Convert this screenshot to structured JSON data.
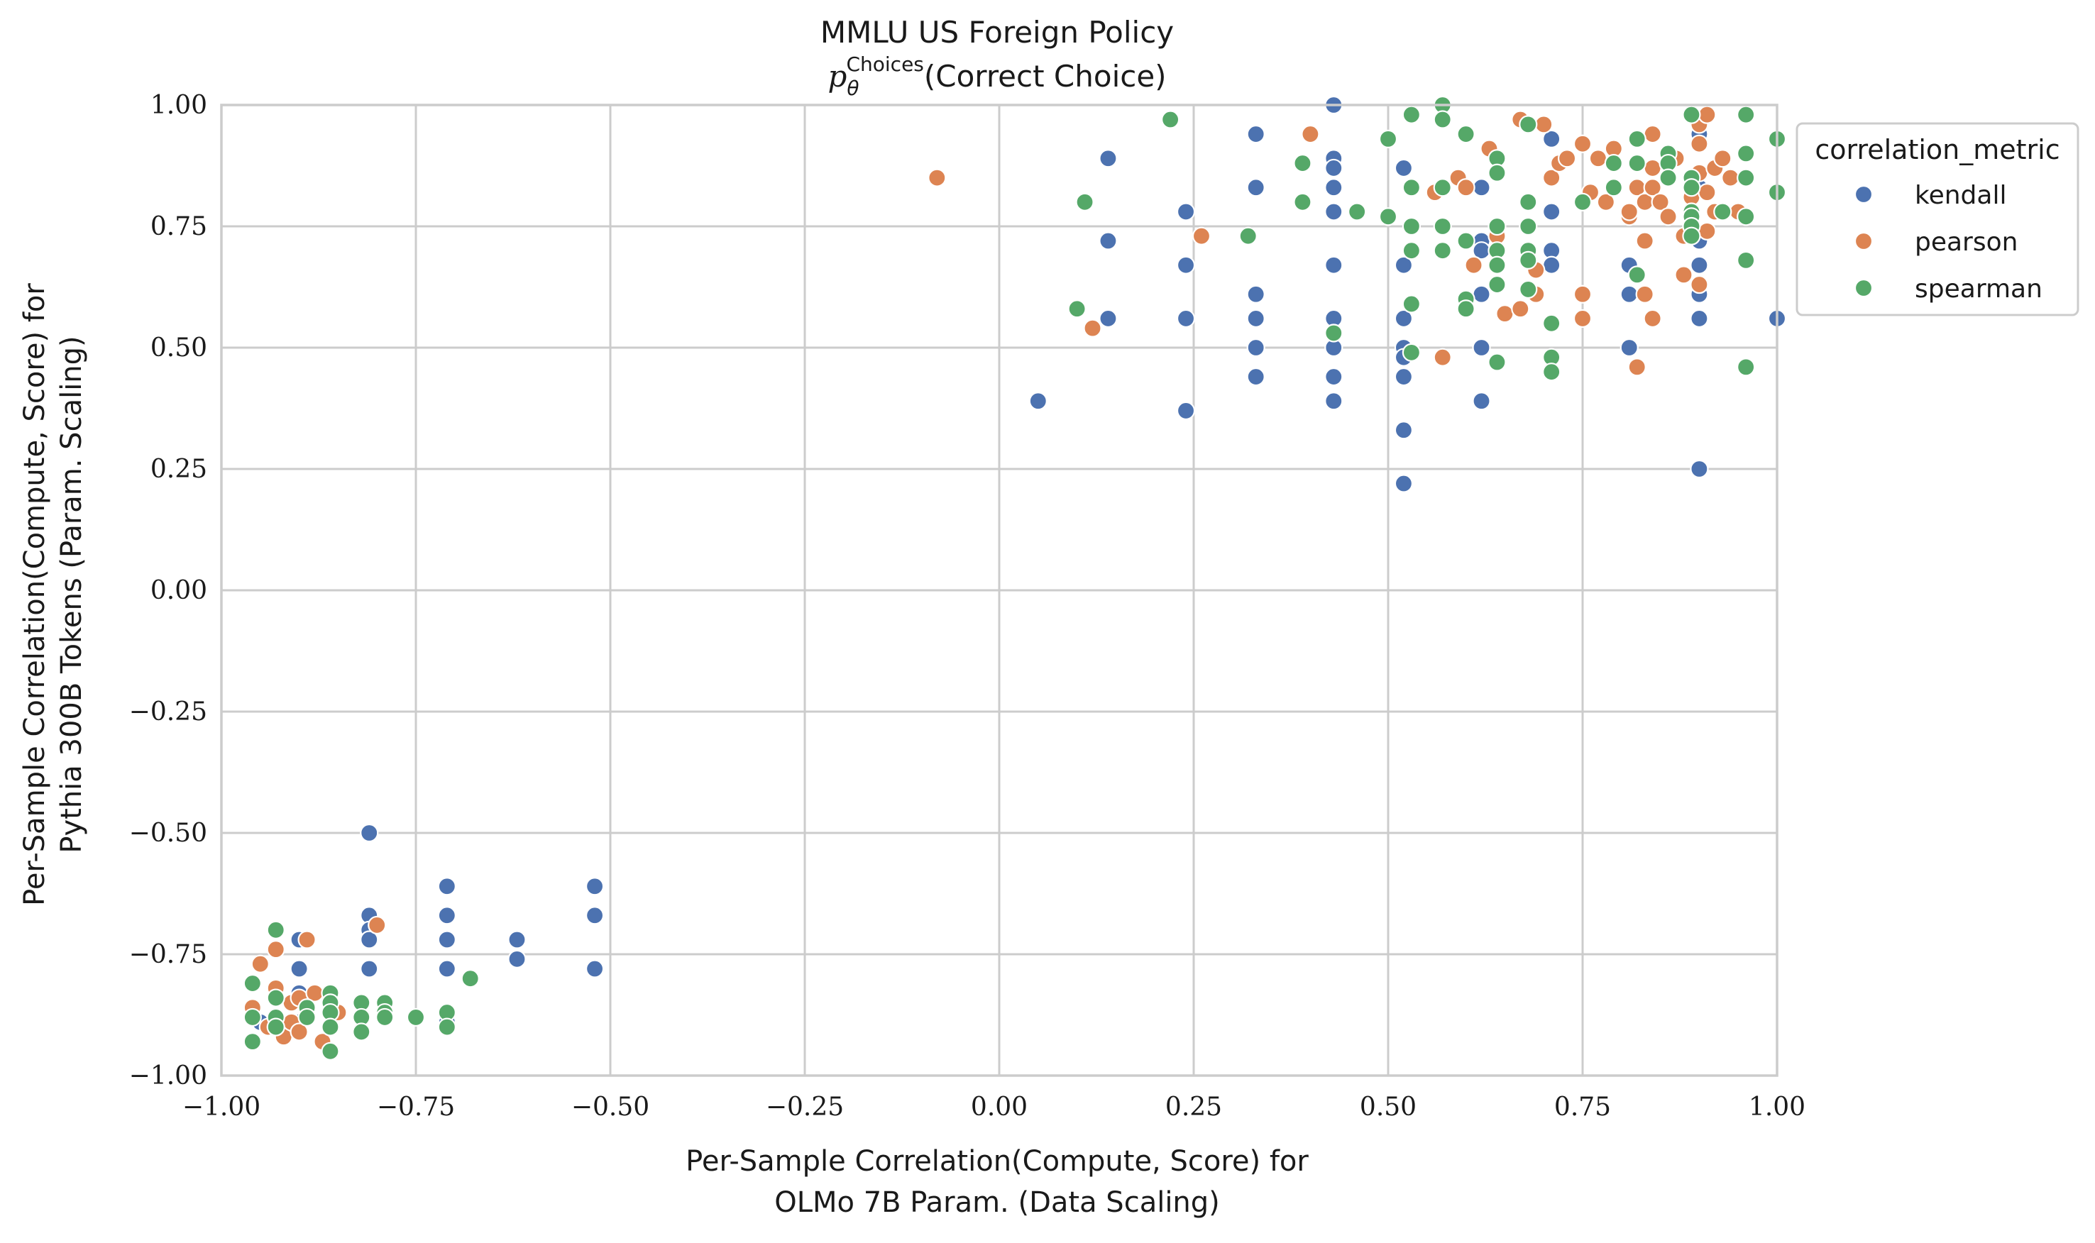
{
  "chart_data": {
    "type": "scatter",
    "title": "MMLU US Foreign Policy",
    "subtitle": {
      "symbol": "p",
      "symbol_sub": "θ",
      "symbol_sup": "Choices",
      "rest": "(Correct Choice)"
    },
    "xlabel": [
      "Per-Sample Correlation(Compute, Score) for",
      "OLMo 7B Param. (Data Scaling)"
    ],
    "ylabel": [
      "Per-Sample Correlation(Compute, Score) for",
      "Pythia 300B Tokens (Param. Scaling)"
    ],
    "xlim": [
      -1.0,
      1.0
    ],
    "ylim": [
      -1.0,
      1.0
    ],
    "xticks": [
      -1.0,
      -0.75,
      -0.5,
      -0.25,
      0.0,
      0.25,
      0.5,
      0.75,
      1.0
    ],
    "yticks": [
      -1.0,
      -0.75,
      -0.5,
      -0.25,
      0.0,
      0.25,
      0.5,
      0.75,
      1.0
    ],
    "xtick_labels": [
      "−1.00",
      "−0.75",
      "−0.50",
      "−0.25",
      "0.00",
      "0.25",
      "0.50",
      "0.75",
      "1.00"
    ],
    "ytick_labels": [
      "−1.00",
      "−0.75",
      "−0.50",
      "−0.25",
      "0.00",
      "0.25",
      "0.50",
      "0.75",
      "1.00"
    ],
    "grid": true,
    "legend": {
      "title": "correlation_metric",
      "placement": "outside-top-right"
    },
    "series": [
      {
        "name": "kendall",
        "color": "#4c72b0",
        "points": [
          [
            -0.81,
            -0.5
          ],
          [
            -0.81,
            -0.67
          ],
          [
            -0.81,
            -0.7
          ],
          [
            -0.81,
            -0.72
          ],
          [
            -0.81,
            -0.78
          ],
          [
            -0.71,
            -0.61
          ],
          [
            -0.71,
            -0.67
          ],
          [
            -0.71,
            -0.72
          ],
          [
            -0.71,
            -0.78
          ],
          [
            -0.71,
            -0.89
          ],
          [
            -0.62,
            -0.72
          ],
          [
            -0.62,
            -0.76
          ],
          [
            -0.52,
            -0.61
          ],
          [
            -0.52,
            -0.67
          ],
          [
            -0.52,
            -0.78
          ],
          [
            -0.9,
            -0.72
          ],
          [
            -0.9,
            -0.78
          ],
          [
            -0.9,
            -0.83
          ],
          [
            -0.9,
            -0.89
          ],
          [
            -0.95,
            -0.89
          ],
          [
            0.05,
            0.39
          ],
          [
            0.14,
            0.89
          ],
          [
            0.14,
            0.72
          ],
          [
            0.14,
            0.56
          ],
          [
            0.24,
            0.78
          ],
          [
            0.24,
            0.67
          ],
          [
            0.24,
            0.56
          ],
          [
            0.24,
            0.37
          ],
          [
            0.33,
            0.94
          ],
          [
            0.33,
            0.83
          ],
          [
            0.33,
            0.61
          ],
          [
            0.33,
            0.56
          ],
          [
            0.33,
            0.5
          ],
          [
            0.33,
            0.44
          ],
          [
            0.43,
            1.0
          ],
          [
            0.43,
            0.89
          ],
          [
            0.43,
            0.87
          ],
          [
            0.43,
            0.83
          ],
          [
            0.43,
            0.78
          ],
          [
            0.43,
            0.67
          ],
          [
            0.43,
            0.56
          ],
          [
            0.43,
            0.53
          ],
          [
            0.43,
            0.5
          ],
          [
            0.43,
            0.44
          ],
          [
            0.43,
            0.39
          ],
          [
            0.52,
            0.87
          ],
          [
            0.52,
            0.67
          ],
          [
            0.52,
            0.56
          ],
          [
            0.52,
            0.5
          ],
          [
            0.52,
            0.48
          ],
          [
            0.52,
            0.44
          ],
          [
            0.52,
            0.33
          ],
          [
            0.52,
            0.22
          ],
          [
            0.62,
            0.83
          ],
          [
            0.62,
            0.72
          ],
          [
            0.62,
            0.7
          ],
          [
            0.62,
            0.61
          ],
          [
            0.62,
            0.5
          ],
          [
            0.62,
            0.39
          ],
          [
            0.71,
            0.93
          ],
          [
            0.71,
            0.78
          ],
          [
            0.71,
            0.7
          ],
          [
            0.71,
            0.67
          ],
          [
            0.81,
            0.67
          ],
          [
            0.81,
            0.61
          ],
          [
            0.81,
            0.5
          ],
          [
            0.9,
            0.94
          ],
          [
            0.9,
            0.83
          ],
          [
            0.9,
            0.72
          ],
          [
            0.9,
            0.67
          ],
          [
            0.9,
            0.61
          ],
          [
            0.9,
            0.56
          ],
          [
            0.9,
            0.25
          ],
          [
            1.0,
            0.56
          ]
        ]
      },
      {
        "name": "pearson",
        "color": "#dd8452",
        "points": [
          [
            -0.08,
            0.85
          ],
          [
            0.12,
            0.54
          ],
          [
            0.26,
            0.73
          ],
          [
            0.4,
            0.94
          ],
          [
            0.56,
            0.82
          ],
          [
            0.57,
            0.48
          ],
          [
            0.59,
            0.85
          ],
          [
            0.6,
            0.83
          ],
          [
            0.61,
            0.67
          ],
          [
            0.63,
            0.91
          ],
          [
            0.64,
            0.73
          ],
          [
            0.65,
            0.57
          ],
          [
            0.67,
            0.97
          ],
          [
            0.67,
            0.58
          ],
          [
            0.68,
            0.8
          ],
          [
            0.69,
            0.61
          ],
          [
            0.69,
            0.66
          ],
          [
            0.7,
            0.96
          ],
          [
            0.71,
            0.85
          ],
          [
            0.72,
            0.88
          ],
          [
            0.73,
            0.89
          ],
          [
            0.75,
            0.92
          ],
          [
            0.75,
            0.8
          ],
          [
            0.75,
            0.61
          ],
          [
            0.75,
            0.56
          ],
          [
            0.76,
            0.82
          ],
          [
            0.77,
            0.89
          ],
          [
            0.78,
            0.8
          ],
          [
            0.79,
            0.91
          ],
          [
            0.81,
            0.77
          ],
          [
            0.81,
            0.78
          ],
          [
            0.82,
            0.83
          ],
          [
            0.82,
            0.46
          ],
          [
            0.83,
            0.8
          ],
          [
            0.83,
            0.72
          ],
          [
            0.83,
            0.61
          ],
          [
            0.84,
            0.94
          ],
          [
            0.84,
            0.87
          ],
          [
            0.84,
            0.83
          ],
          [
            0.84,
            0.56
          ],
          [
            0.85,
            0.8
          ],
          [
            0.86,
            0.77
          ],
          [
            0.87,
            0.89
          ],
          [
            0.88,
            0.73
          ],
          [
            0.88,
            0.65
          ],
          [
            0.89,
            0.81
          ],
          [
            0.9,
            0.96
          ],
          [
            0.9,
            0.92
          ],
          [
            0.9,
            0.86
          ],
          [
            0.9,
            0.63
          ],
          [
            0.91,
            0.98
          ],
          [
            0.91,
            0.82
          ],
          [
            0.91,
            0.74
          ],
          [
            0.92,
            0.87
          ],
          [
            0.92,
            0.78
          ],
          [
            0.93,
            0.89
          ],
          [
            0.94,
            0.85
          ],
          [
            0.95,
            0.78
          ],
          [
            -0.96,
            -0.86
          ],
          [
            -0.95,
            -0.77
          ],
          [
            -0.94,
            -0.9
          ],
          [
            -0.93,
            -0.74
          ],
          [
            -0.93,
            -0.82
          ],
          [
            -0.93,
            -0.88
          ],
          [
            -0.92,
            -0.92
          ],
          [
            -0.91,
            -0.85
          ],
          [
            -0.91,
            -0.89
          ],
          [
            -0.9,
            -0.91
          ],
          [
            -0.9,
            -0.84
          ],
          [
            -0.89,
            -0.72
          ],
          [
            -0.88,
            -0.83
          ],
          [
            -0.87,
            -0.93
          ],
          [
            -0.86,
            -0.85
          ],
          [
            -0.85,
            -0.87
          ],
          [
            -0.8,
            -0.69
          ]
        ]
      },
      {
        "name": "spearman",
        "color": "#55a868",
        "points": [
          [
            0.1,
            0.58
          ],
          [
            0.11,
            0.8
          ],
          [
            0.22,
            0.97
          ],
          [
            0.32,
            0.73
          ],
          [
            0.39,
            0.88
          ],
          [
            0.39,
            0.8
          ],
          [
            0.43,
            0.53
          ],
          [
            0.46,
            0.78
          ],
          [
            0.5,
            0.93
          ],
          [
            0.5,
            0.77
          ],
          [
            0.53,
            0.98
          ],
          [
            0.53,
            0.83
          ],
          [
            0.53,
            0.75
          ],
          [
            0.53,
            0.7
          ],
          [
            0.53,
            0.59
          ],
          [
            0.53,
            0.49
          ],
          [
            0.57,
            1.0
          ],
          [
            0.57,
            0.97
          ],
          [
            0.57,
            0.83
          ],
          [
            0.57,
            0.75
          ],
          [
            0.57,
            0.7
          ],
          [
            0.6,
            0.94
          ],
          [
            0.6,
            0.72
          ],
          [
            0.6,
            0.6
          ],
          [
            0.6,
            0.58
          ],
          [
            0.64,
            0.89
          ],
          [
            0.64,
            0.86
          ],
          [
            0.64,
            0.75
          ],
          [
            0.64,
            0.7
          ],
          [
            0.64,
            0.67
          ],
          [
            0.64,
            0.63
          ],
          [
            0.64,
            0.47
          ],
          [
            0.68,
            0.96
          ],
          [
            0.68,
            0.8
          ],
          [
            0.68,
            0.75
          ],
          [
            0.68,
            0.7
          ],
          [
            0.68,
            0.68
          ],
          [
            0.68,
            0.62
          ],
          [
            0.71,
            0.55
          ],
          [
            0.71,
            0.48
          ],
          [
            0.71,
            0.45
          ],
          [
            0.75,
            0.8
          ],
          [
            0.79,
            0.88
          ],
          [
            0.79,
            0.83
          ],
          [
            0.82,
            0.93
          ],
          [
            0.82,
            0.88
          ],
          [
            0.82,
            0.65
          ],
          [
            0.86,
            0.9
          ],
          [
            0.86,
            0.88
          ],
          [
            0.86,
            0.85
          ],
          [
            0.89,
            0.98
          ],
          [
            0.89,
            0.85
          ],
          [
            0.89,
            0.83
          ],
          [
            0.89,
            0.78
          ],
          [
            0.89,
            0.77
          ],
          [
            0.89,
            0.75
          ],
          [
            0.89,
            0.73
          ],
          [
            0.93,
            0.78
          ],
          [
            0.96,
            0.98
          ],
          [
            0.96,
            0.9
          ],
          [
            0.96,
            0.85
          ],
          [
            0.96,
            0.77
          ],
          [
            0.96,
            0.68
          ],
          [
            0.96,
            0.46
          ],
          [
            1.0,
            0.93
          ],
          [
            1.0,
            0.82
          ],
          [
            -0.96,
            -0.81
          ],
          [
            -0.96,
            -0.88
          ],
          [
            -0.96,
            -0.93
          ],
          [
            -0.93,
            -0.7
          ],
          [
            -0.93,
            -0.84
          ],
          [
            -0.93,
            -0.88
          ],
          [
            -0.93,
            -0.9
          ],
          [
            -0.89,
            -0.86
          ],
          [
            -0.89,
            -0.88
          ],
          [
            -0.86,
            -0.83
          ],
          [
            -0.86,
            -0.85
          ],
          [
            -0.86,
            -0.87
          ],
          [
            -0.86,
            -0.9
          ],
          [
            -0.86,
            -0.95
          ],
          [
            -0.82,
            -0.85
          ],
          [
            -0.82,
            -0.88
          ],
          [
            -0.82,
            -0.91
          ],
          [
            -0.79,
            -0.85
          ],
          [
            -0.79,
            -0.87
          ],
          [
            -0.79,
            -0.88
          ],
          [
            -0.75,
            -0.88
          ],
          [
            -0.71,
            -0.87
          ],
          [
            -0.71,
            -0.9
          ],
          [
            -0.68,
            -0.8
          ]
        ]
      }
    ]
  }
}
